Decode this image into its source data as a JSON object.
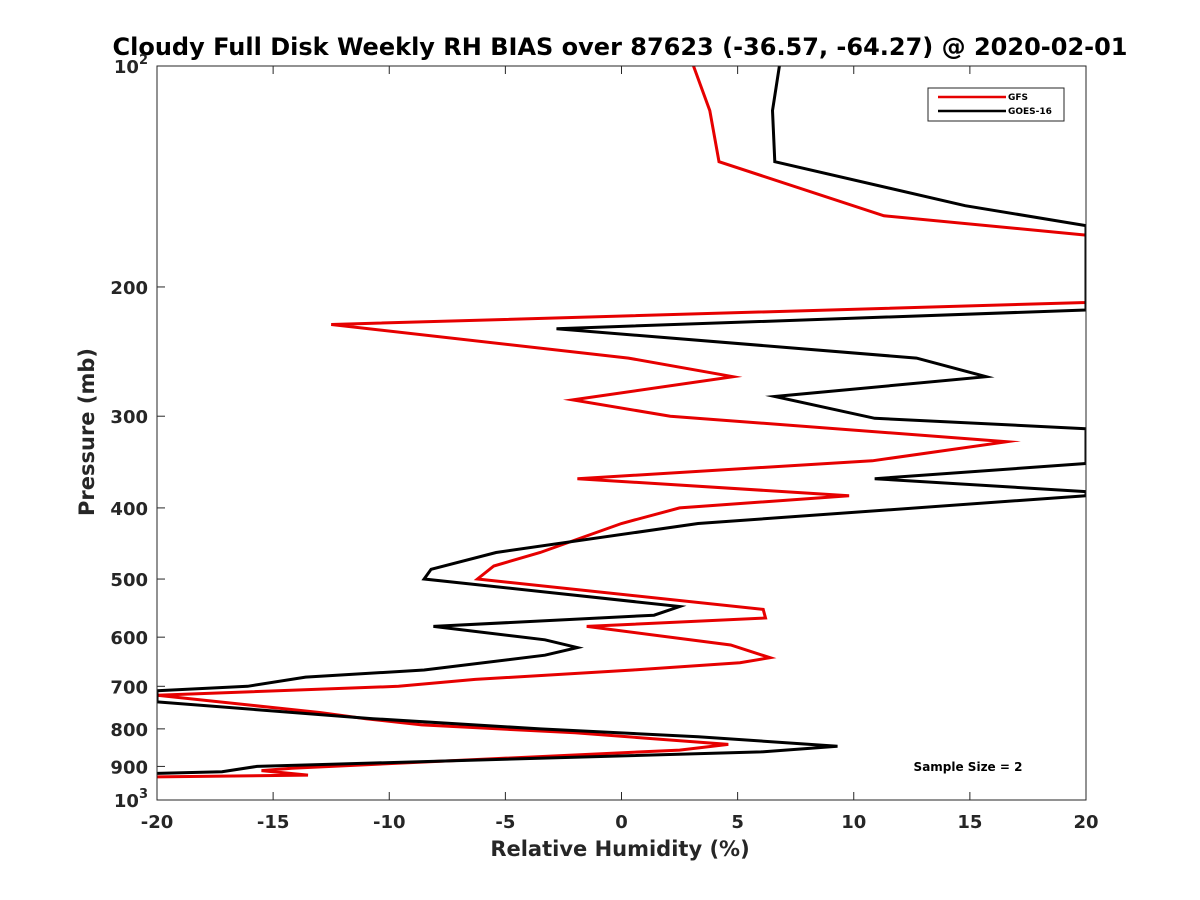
{
  "chart_data": {
    "type": "line",
    "title": "Cloudy Full Disk Weekly RH BIAS over 87623 (-36.57, -64.27) @ 2020-02-01",
    "xlabel": "Relative Humidity (%)",
    "ylabel": "Pressure (mb)",
    "xlim": [
      -20,
      20
    ],
    "ylim": [
      100,
      1000
    ],
    "y_scale": "log",
    "y_reversed": true,
    "x_ticks": [
      -20,
      -15,
      -10,
      -5,
      0,
      5,
      10,
      15,
      20
    ],
    "x_tick_labels": [
      "-20",
      "-15",
      "-10",
      "-5",
      "0",
      "5",
      "10",
      "15",
      "20"
    ],
    "y_ticks": [
      100,
      200,
      300,
      400,
      500,
      600,
      700,
      800,
      900,
      1000
    ],
    "y_tick_labels": [
      {
        "base": "10",
        "exp": "2"
      },
      {
        "base": "200"
      },
      {
        "base": "300"
      },
      {
        "base": "400"
      },
      {
        "base": "500"
      },
      {
        "base": "600"
      },
      {
        "base": "700"
      },
      {
        "base": "800"
      },
      {
        "base": "900"
      },
      {
        "base": "10",
        "exp": "3"
      }
    ],
    "grid": false,
    "legend_position": "top-right",
    "annotation": "Sample Size = 2",
    "series": [
      {
        "name": "GFS",
        "color": "#e60000",
        "points": [
          [
            3.1,
            100
          ],
          [
            3.8,
            115
          ],
          [
            4.2,
            135
          ],
          [
            11.3,
            160
          ],
          [
            20,
            170
          ],
          [
            20,
            210
          ],
          [
            -12.5,
            225
          ],
          [
            0.3,
            250
          ],
          [
            4.8,
            265
          ],
          [
            -2.1,
            285
          ],
          [
            2.1,
            300
          ],
          [
            16.6,
            325
          ],
          [
            10.8,
            345
          ],
          [
            -1.9,
            365
          ],
          [
            9.8,
            385
          ],
          [
            2.5,
            400
          ],
          [
            0,
            420
          ],
          [
            -3.5,
            460
          ],
          [
            -5.5,
            480
          ],
          [
            -6.2,
            500
          ],
          [
            6.1,
            550
          ],
          [
            6.2,
            565
          ],
          [
            -1.5,
            580
          ],
          [
            4.7,
            615
          ],
          [
            6.4,
            640
          ],
          [
            5.1,
            650
          ],
          [
            0.5,
            665
          ],
          [
            -6.3,
            685
          ],
          [
            -9.6,
            700
          ],
          [
            -20,
            720
          ],
          [
            -13,
            760
          ],
          [
            -11,
            775
          ],
          [
            -8.6,
            790
          ],
          [
            -2,
            810
          ],
          [
            4.6,
            840
          ],
          [
            2.5,
            855
          ],
          [
            -14.2,
            905
          ],
          [
            -15.5,
            912
          ],
          [
            -13.5,
            925
          ],
          [
            -20,
            930
          ]
        ]
      },
      {
        "name": "GOES-16",
        "color": "#000000",
        "points": [
          [
            6.8,
            100
          ],
          [
            6.5,
            115
          ],
          [
            6.6,
            135
          ],
          [
            14.8,
            155
          ],
          [
            20,
            165
          ],
          [
            20,
            215
          ],
          [
            -2.8,
            228
          ],
          [
            12.7,
            250
          ],
          [
            15.7,
            265
          ],
          [
            6.6,
            282
          ],
          [
            10.9,
            302
          ],
          [
            20,
            312
          ],
          [
            20,
            348
          ],
          [
            10.9,
            365
          ],
          [
            20,
            380
          ],
          [
            20,
            385
          ],
          [
            3.3,
            420
          ],
          [
            -5.4,
            460
          ],
          [
            -8.2,
            485
          ],
          [
            -8.5,
            500
          ],
          [
            2.5,
            545
          ],
          [
            1.4,
            560
          ],
          [
            -8.1,
            580
          ],
          [
            -3.3,
            605
          ],
          [
            -1.9,
            620
          ],
          [
            -3.3,
            635
          ],
          [
            -8.5,
            665
          ],
          [
            -13.6,
            680
          ],
          [
            -16.1,
            700
          ],
          [
            -20,
            710
          ],
          [
            -20,
            735
          ],
          [
            -10.7,
            775
          ],
          [
            -3.5,
            800
          ],
          [
            3.3,
            820
          ],
          [
            9.3,
            845
          ],
          [
            6,
            860
          ],
          [
            -15.7,
            900
          ],
          [
            -17.2,
            915
          ],
          [
            -20,
            920
          ]
        ]
      }
    ]
  }
}
